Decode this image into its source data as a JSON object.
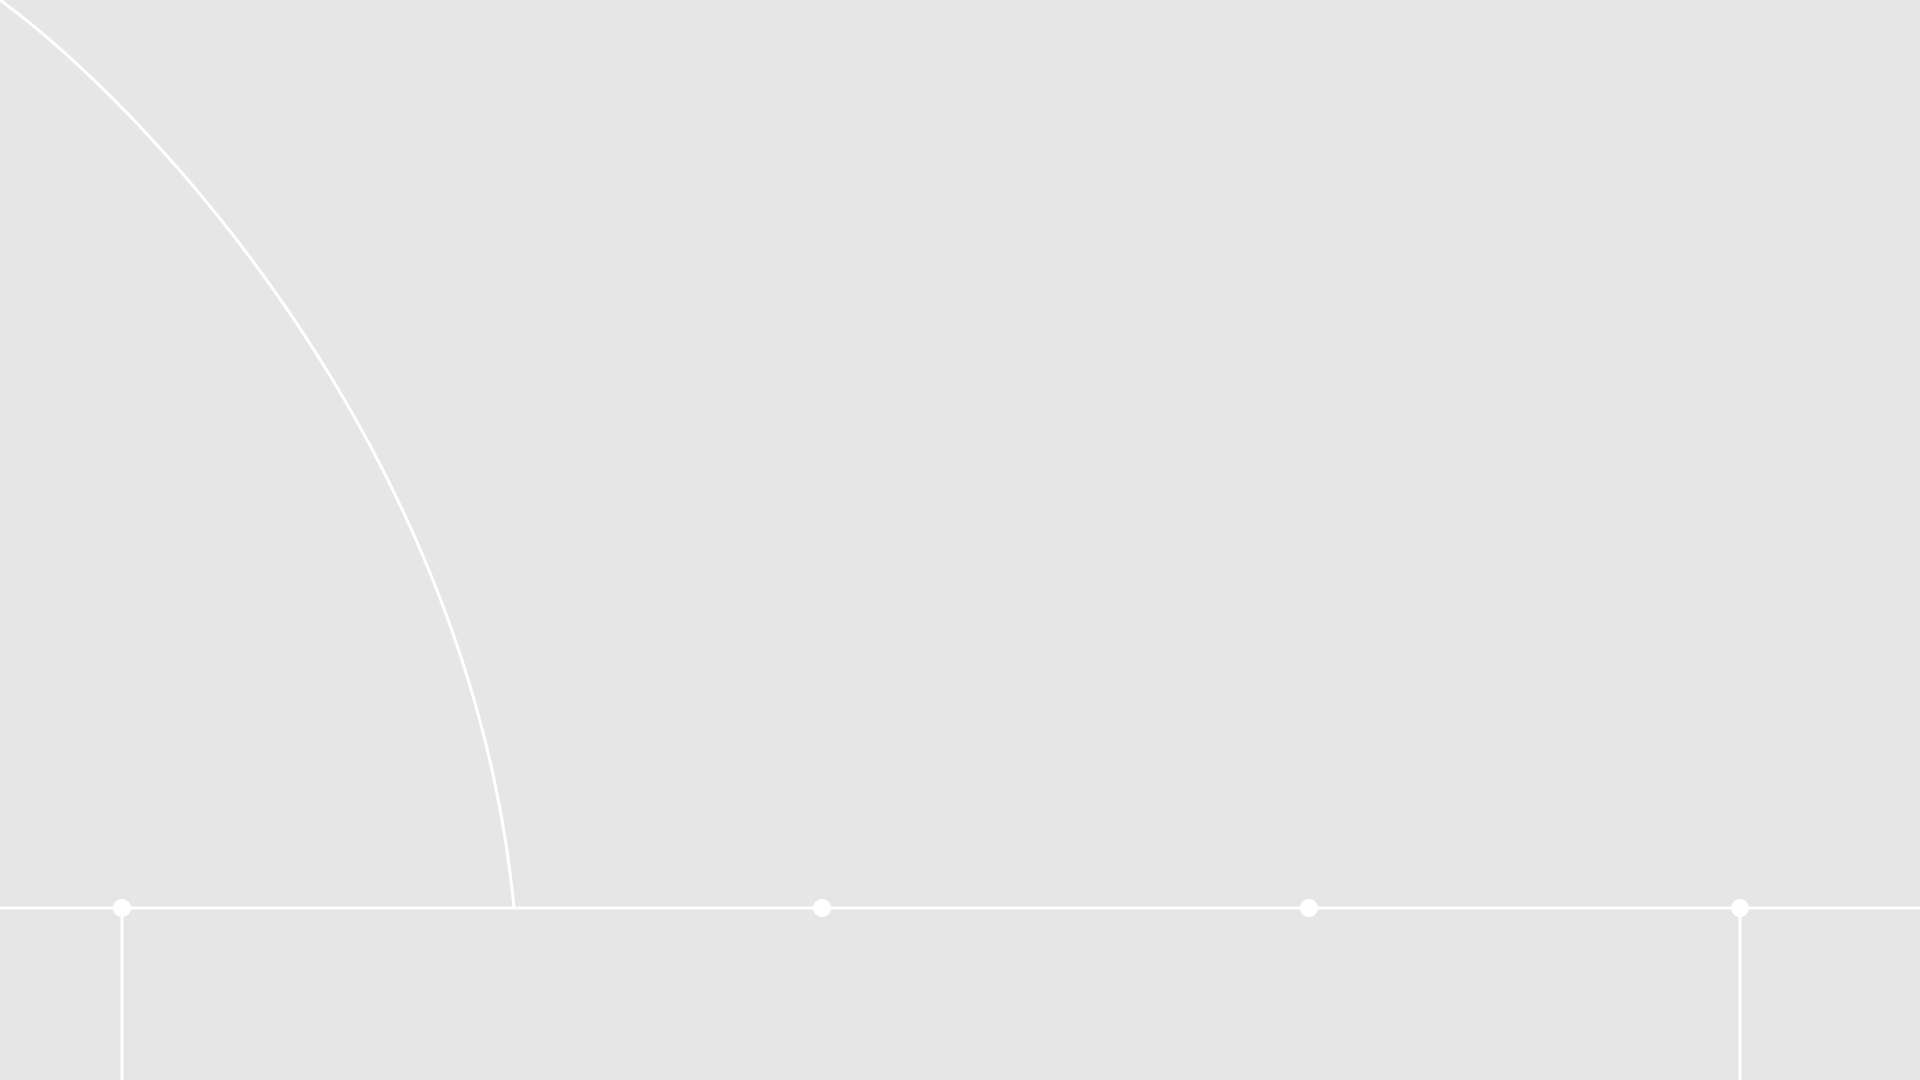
{
  "colors": {
    "background": "#e6e6e6",
    "line": "#ffffff"
  },
  "graphic": {
    "description_elements": [
      "baseline",
      "arc",
      "node-markers",
      "vertical-drops"
    ],
    "node_count": 4,
    "vertical_drop_count": 2
  }
}
